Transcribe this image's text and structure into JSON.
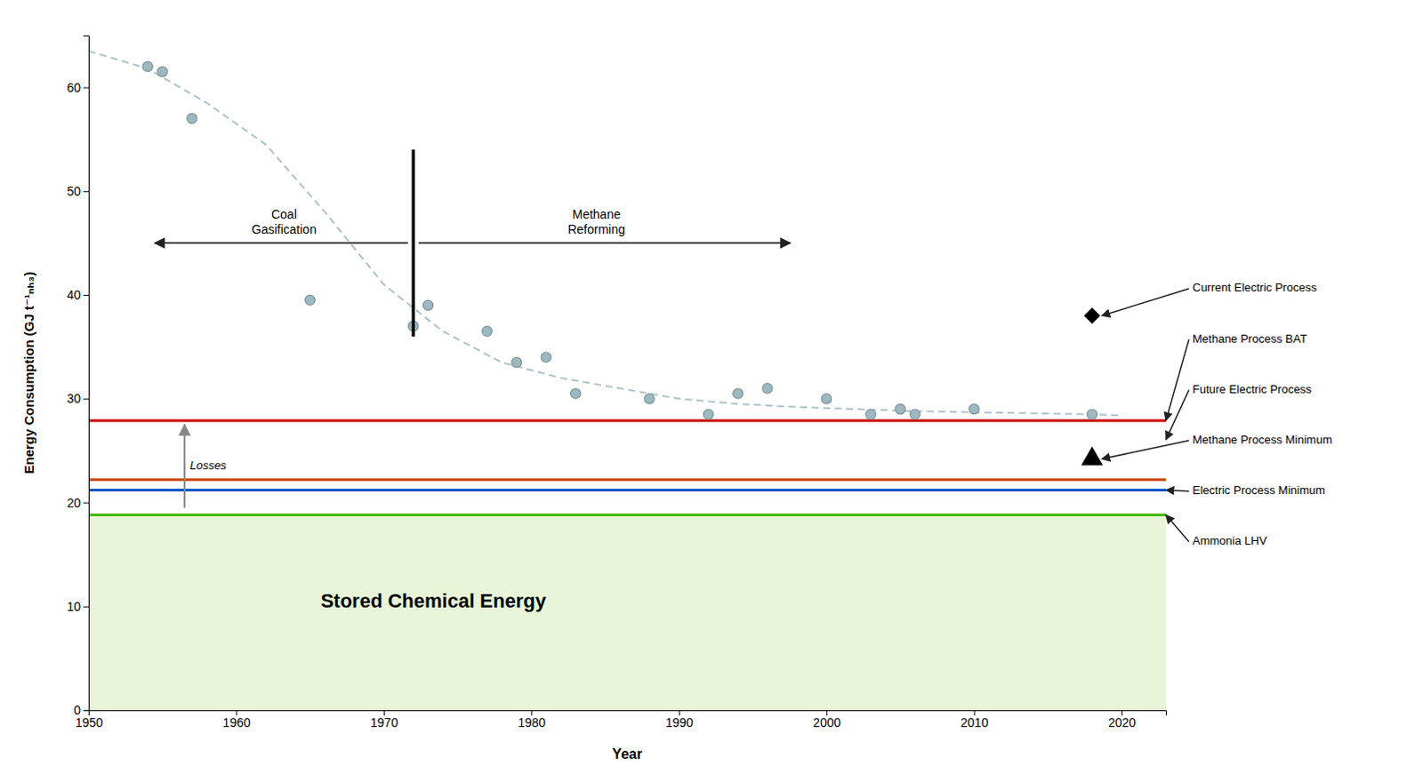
{
  "chart_data": {
    "type": "scatter",
    "xlabel": "Year",
    "ylabel": "Energy Consumption (GJ t⁻¹ₙₕ₃)",
    "xlim": [
      1950,
      2023
    ],
    "ylim": [
      0,
      65
    ],
    "xticks": [
      1950,
      1960,
      1970,
      1980,
      1990,
      2000,
      2010,
      2020
    ],
    "yticks": [
      0,
      10,
      20,
      30,
      40,
      50,
      60
    ],
    "grid": false,
    "area": {
      "value": 18.8,
      "color": "#e8f5d8",
      "label": "Stored Chemical Energy"
    },
    "hlines": [
      {
        "value": 18.8,
        "color": "#44bb00"
      },
      {
        "value": 21.2,
        "color": "#0055cc"
      },
      {
        "value": 22.2,
        "color": "#cc4400"
      },
      {
        "value": 27.9,
        "color": "#cc0000"
      }
    ],
    "series": [
      {
        "type": "line",
        "line_style": "dashed",
        "color": "#9db8c0",
        "x": [
          1950,
          1954,
          1958,
          1962,
          1966,
          1970,
          1974,
          1978,
          1982,
          1986,
          1990,
          1994,
          1998,
          2002,
          2006,
          2010,
          2014,
          2018,
          2020
        ],
        "values": [
          63.5,
          61.8,
          58.5,
          54.5,
          48,
          41,
          36.5,
          33.5,
          32,
          31,
          30,
          29.5,
          29.2,
          29.0,
          28.8,
          28.7,
          28.6,
          28.5,
          28.4
        ]
      },
      {
        "type": "scatter",
        "marker": "circle",
        "color": "#9db8c0",
        "x": [
          1954,
          1955,
          1957,
          1965,
          1972,
          1973,
          1977,
          1979,
          1981,
          1983,
          1988,
          1992,
          1994,
          1996,
          2000,
          2003,
          2005,
          2006,
          2010,
          2018
        ],
        "values": [
          62,
          61.5,
          57,
          39.5,
          37,
          39,
          36.5,
          33.5,
          34,
          30.5,
          30,
          28.5,
          30.5,
          31,
          30,
          28.5,
          29,
          28.5,
          29,
          28.5
        ]
      },
      {
        "type": "scatter",
        "marker": "diamond",
        "color": "black",
        "x": [
          2018
        ],
        "values": [
          38
        ]
      },
      {
        "type": "scatter",
        "marker": "triangle",
        "color": "black",
        "x": [
          2018
        ],
        "values": [
          24.2
        ]
      }
    ],
    "losses": {
      "text": "Losses",
      "x": 1956.5,
      "y_from": 19.5,
      "y_to": 27.5
    },
    "divider": {
      "x": 1972,
      "y_from": 36,
      "y_to": 54,
      "left_text": "Coal\nGasification",
      "right_text": "Methane\nReforming"
    },
    "side_labels": [
      {
        "text": "Current Electric Process",
        "x": 2018,
        "y": 38
      },
      {
        "text": "Methane Process BAT",
        "y": 27.9
      },
      {
        "text": "Future Electric Process"
      },
      {
        "text": "Methane Process Minimum",
        "x": 2018,
        "y": 24.2
      },
      {
        "text": "Electric Process Minimum",
        "y": 21.2
      },
      {
        "text": "Ammonia LHV",
        "y": 18.8
      }
    ]
  }
}
